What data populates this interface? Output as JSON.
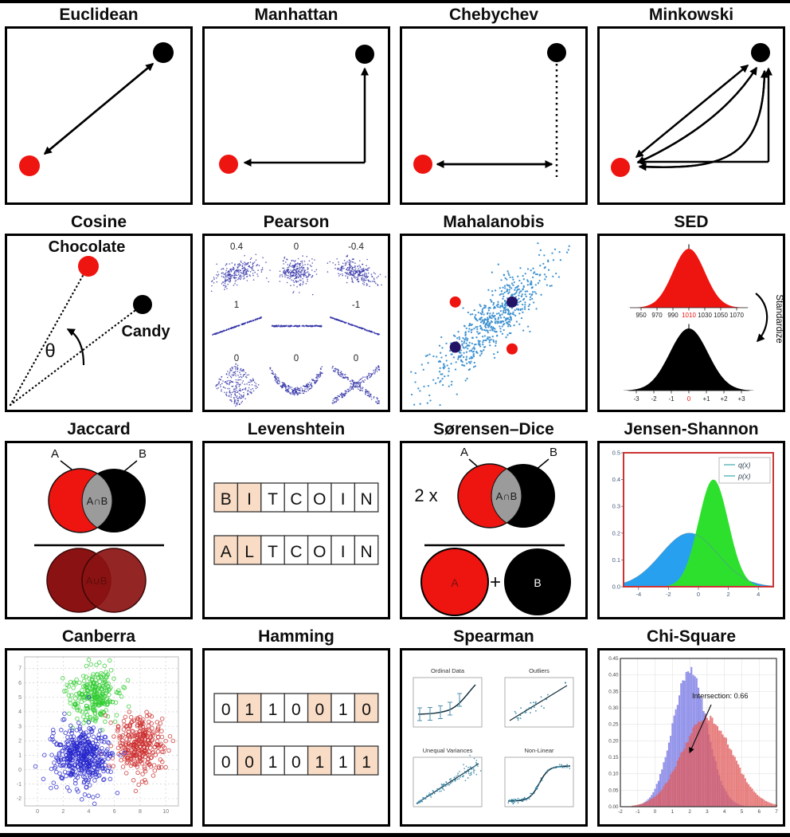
{
  "colors": {
    "red": "#ee1410",
    "black": "#000000",
    "peach": "#f9dcc5",
    "maroon": "#8b1212",
    "maroon_dark": "#450808",
    "union_text": "#5c0d0d",
    "gray": "#9b9b9b",
    "navy": "#231366",
    "scatter_blue": "#3a8fd0",
    "pearson_dot": "#3232a8",
    "cluster_green": "#2ecc2e",
    "cluster_blue": "#2424cc",
    "cluster_red": "#cc2a2a",
    "js_blue": "#28a0f0",
    "js_green": "#2ee02e",
    "chi_blue": "#9393ea",
    "chi_red": "#e15b5b",
    "frame_red": "#cc3333",
    "teal": "#3aa8a8",
    "spearman_line": "#16323f",
    "spearman_dot": "#3f8cab"
  },
  "panels": {
    "euclidean": {
      "title": "Euclidean"
    },
    "manhattan": {
      "title": "Manhattan"
    },
    "chebychev": {
      "title": "Chebychev"
    },
    "minkowski": {
      "title": "Minkowski"
    },
    "cosine": {
      "title": "Cosine",
      "point_a": "Chocolate",
      "point_b": "Candy",
      "angle_symbol": "θ"
    },
    "pearson": {
      "title": "Pearson"
    },
    "mahalanobis": {
      "title": "Mahalanobis"
    },
    "sed": {
      "title": "SED",
      "note": "Standardize"
    },
    "jaccard": {
      "title": "Jaccard",
      "label_a": "A",
      "label_b": "B",
      "intersection": "A∩B",
      "union": "A∪B"
    },
    "levenshtein": {
      "title": "Levenshtein",
      "words": [
        "BITCOIN",
        "ALTCOIN"
      ],
      "highlight_positions": [
        0,
        1
      ]
    },
    "sorensen_dice": {
      "title": "Sørensen–Dice",
      "factor": "2 x",
      "label_a": "A",
      "label_b": "B",
      "intersection": "A∩B",
      "circle_a": "A",
      "plus": "+",
      "circle_b": "B"
    },
    "jensen_shannon": {
      "title": "Jensen-Shannon"
    },
    "canberra": {
      "title": "Canberra"
    },
    "hamming": {
      "title": "Hamming",
      "rows": [
        "0110010",
        "0010111"
      ],
      "diff_positions": [
        1,
        4,
        6
      ]
    },
    "spearman": {
      "title": "Spearman"
    },
    "chi_square": {
      "title": "Chi-Square"
    }
  },
  "chart_data": [
    {
      "panel": "pearson",
      "type": "scatter",
      "labels_rows": [
        [
          "0.4",
          "0",
          "-0.4"
        ],
        [
          "1",
          "-1"
        ],
        [
          "0",
          "0",
          "0"
        ]
      ]
    },
    {
      "panel": "mahalanobis",
      "type": "scatter",
      "cluster": {
        "n": 640,
        "orientation_deg": 45
      },
      "red_outliers_pct": [
        [
          29,
          38
        ],
        [
          60,
          65
        ]
      ],
      "navy_inliers_pct": [
        [
          60,
          38
        ],
        [
          29,
          64
        ]
      ]
    },
    {
      "panel": "sed",
      "type": "area",
      "annotation": "Standardize",
      "top": {
        "color": "red",
        "xticks": [
          "950",
          "970",
          "990",
          "1010",
          "1030",
          "1050",
          "1070"
        ],
        "highlight_tick": "1010"
      },
      "bottom": {
        "color": "black",
        "xticks": [
          "-3",
          "-2",
          "-1",
          "0",
          "+1",
          "+2",
          "+3"
        ],
        "highlight_tick": "0"
      }
    },
    {
      "panel": "jensen_shannon",
      "type": "area",
      "series": [
        {
          "name": "q(x)",
          "mean": -0.6,
          "sd": 1.9,
          "peak": 0.2
        },
        {
          "name": "p(x)",
          "mean": 1.0,
          "sd": 1.0,
          "peak": 0.4
        }
      ],
      "legend": [
        "q(x)",
        "p(x)"
      ],
      "xlim": [
        -5,
        5
      ],
      "ylim": [
        0,
        0.5
      ],
      "yticks": [
        "0.0",
        "0.1",
        "0.2",
        "0.3",
        "0.4",
        "0.5"
      ],
      "xticks": [
        -4,
        -2,
        0,
        2,
        4
      ]
    },
    {
      "panel": "canberra",
      "type": "scatter",
      "clusters": [
        {
          "name": "green",
          "center": [
            4.4,
            5.1
          ],
          "sd": 0.95,
          "n": 260
        },
        {
          "name": "red",
          "center": [
            8.0,
            1.7
          ],
          "sd": 1.0,
          "n": 300
        },
        {
          "name": "blue",
          "center": [
            3.4,
            1.0
          ],
          "sd": 1.05,
          "n": 430
        }
      ],
      "xlim": [
        -1,
        11
      ],
      "ylim": [
        -2.5,
        7.8
      ],
      "xticks": [
        0,
        2,
        4,
        6,
        8,
        10
      ],
      "yticks": [
        -2,
        -1,
        0,
        1,
        2,
        3,
        4,
        5,
        6,
        7
      ]
    },
    {
      "panel": "spearman",
      "type": "scatter",
      "subplots": [
        "Ordinal Data",
        "Outliers",
        "Unequal Variances",
        "Non-Linear"
      ]
    },
    {
      "panel": "chi_square",
      "type": "histogram",
      "series": [
        {
          "name": "blue",
          "mean": 2.0,
          "sd": 1.0,
          "peak": 0.41
        },
        {
          "name": "red",
          "mean": 3.0,
          "sd": 1.45,
          "peak": 0.27
        }
      ],
      "annotation": "Intersection: 0.66",
      "xlim": [
        -2,
        7
      ],
      "ylim": [
        0,
        0.45
      ],
      "xticks": [
        -2,
        -1,
        0,
        1,
        2,
        3,
        4,
        5,
        6,
        7
      ],
      "yticks": [
        "0.00",
        "0.05",
        "0.10",
        "0.15",
        "0.20",
        "0.25",
        "0.30",
        "0.35",
        "0.40",
        "0.45"
      ]
    }
  ]
}
